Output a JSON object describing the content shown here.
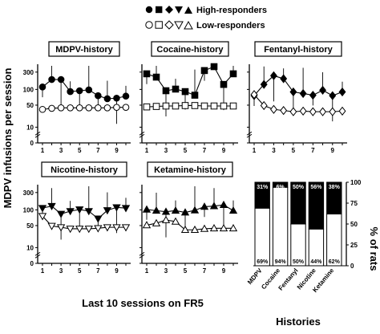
{
  "legend": {
    "high_label": "High-responders",
    "low_label": "Low-responders"
  },
  "axes": {
    "ylabel": "MDPV infusions per session",
    "xlabel": "Last 10 sessions on FR5",
    "right_ylabel": "% of rats",
    "right_xlabel": "Histories"
  },
  "chart_data": [
    {
      "type": "line",
      "title": "MDPV-history",
      "marker_high": "circle",
      "marker_low": "circle",
      "x": [
        1,
        2,
        3,
        4,
        5,
        6,
        7,
        8,
        9,
        10
      ],
      "x_ticks": [
        "1",
        "3",
        "5",
        "7",
        "9"
      ],
      "y_scale": "log",
      "y_ticks": [
        "300",
        "100",
        "50",
        "10",
        "0"
      ],
      "series": [
        {
          "name": "High-responders",
          "values": [
            120,
            190,
            190,
            90,
            95,
            100,
            70,
            58,
            60,
            68
          ]
        },
        {
          "name": "Low-responders",
          "values": [
            30,
            32,
            33,
            33,
            33,
            33,
            33,
            33,
            34,
            34
          ]
        }
      ]
    },
    {
      "type": "line",
      "title": "Cocaine-history",
      "marker_high": "square",
      "marker_low": "square",
      "x": [
        1,
        2,
        3,
        4,
        5,
        6,
        7,
        8,
        9,
        10
      ],
      "x_ticks": [
        "1",
        "3",
        "5",
        "7",
        "9"
      ],
      "y_scale": "log",
      "y_ticks": [],
      "series": [
        {
          "name": "High-responders",
          "values": [
            270,
            220,
            95,
            105,
            90,
            72,
            330,
            420,
            140,
            270
          ]
        },
        {
          "name": "Low-responders",
          "values": [
            35,
            36,
            37,
            37,
            38,
            38,
            37,
            37,
            37,
            37
          ]
        }
      ]
    },
    {
      "type": "line",
      "title": "Fentanyl-history",
      "marker_high": "diamond",
      "marker_low": "diamond",
      "x": [
        1,
        2,
        3,
        4,
        5,
        6,
        7,
        8,
        9,
        10
      ],
      "x_ticks": [
        "1",
        "3",
        "5",
        "7",
        "9"
      ],
      "y_scale": "log",
      "y_ticks": [],
      "series": [
        {
          "name": "High-responders",
          "values": [
            70,
            140,
            240,
            200,
            88,
            80,
            72,
            98,
            70,
            88
          ]
        },
        {
          "name": "Low-responders",
          "values": [
            75,
            38,
            30,
            28,
            26,
            27,
            26,
            26,
            26,
            27
          ]
        }
      ]
    },
    {
      "type": "line",
      "title": "Nicotine-history",
      "marker_high": "triangle-down",
      "marker_low": "triangle-down",
      "x": [
        1,
        2,
        3,
        4,
        5,
        6,
        7,
        8,
        9,
        10
      ],
      "x_ticks": [
        "1",
        "3",
        "5",
        "7",
        "9"
      ],
      "y_scale": "log",
      "y_ticks": [
        "300",
        "100",
        "50",
        "10",
        "0"
      ],
      "series": [
        {
          "name": "High-responders",
          "values": [
            115,
            130,
            80,
            95,
            105,
            95,
            60,
            100,
            120,
            115
          ]
        },
        {
          "name": "Low-responders",
          "values": [
            70,
            38,
            35,
            32,
            32,
            32,
            33,
            35,
            35,
            35
          ]
        }
      ]
    },
    {
      "type": "line",
      "title": "Ketamine-history",
      "marker_high": "triangle-up",
      "marker_low": "triangle-up",
      "x": [
        1,
        2,
        3,
        4,
        5,
        6,
        7,
        8,
        9,
        10
      ],
      "x_ticks": [
        "1",
        "3",
        "5",
        "7",
        "9"
      ],
      "y_scale": "log",
      "y_ticks": [],
      "series": [
        {
          "name": "High-responders",
          "values": [
            105,
            98,
            92,
            98,
            88,
            100,
            125,
            130,
            140,
            98
          ]
        },
        {
          "name": "Low-responders",
          "values": [
            40,
            45,
            55,
            50,
            30,
            30,
            32,
            33,
            33,
            33
          ]
        }
      ]
    },
    {
      "type": "bar",
      "stacked": true,
      "categories": [
        "MDPV",
        "Cocaine",
        "Fentanyl",
        "Nicotine",
        "Ketamine"
      ],
      "ylim": [
        0,
        100
      ],
      "y_ticks": [
        "0",
        "25",
        "50",
        "75",
        "100"
      ],
      "series": [
        {
          "name": "Low-responders",
          "values": [
            69,
            94,
            50,
            44,
            62
          ],
          "labels": [
            "69%",
            "94%",
            "50%",
            "44%",
            "62%"
          ]
        },
        {
          "name": "High-responders",
          "values": [
            31,
            6,
            50,
            56,
            38
          ],
          "labels": [
            "31%",
            "6%",
            "50%",
            "56%",
            "38%"
          ]
        }
      ]
    }
  ]
}
